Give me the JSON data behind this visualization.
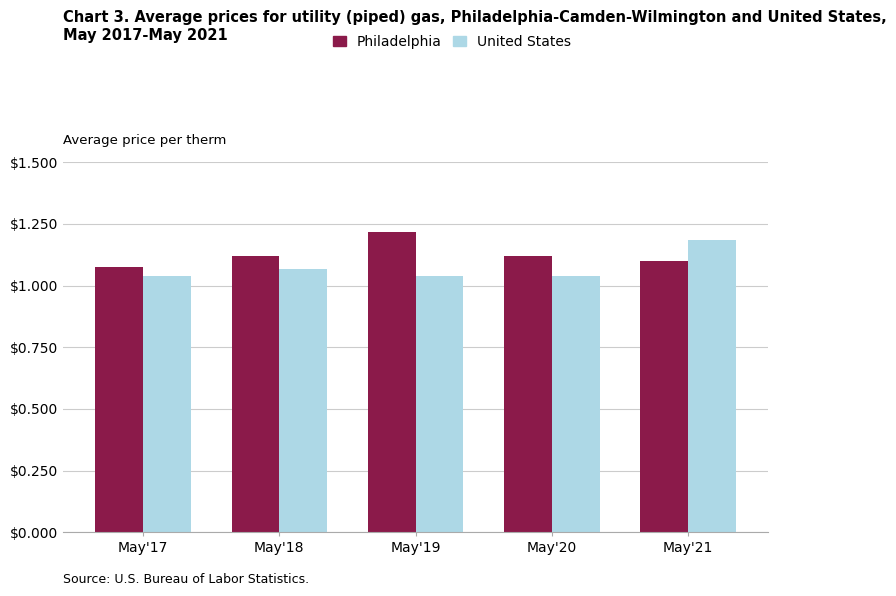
{
  "title_line1": "Chart 3. Average prices for utility (piped) gas, Philadelphia-Camden-Wilmington and United States,",
  "title_line2": "May 2017-May 2021",
  "ylabel": "Average price per therm",
  "source": "Source: U.S. Bureau of Labor Statistics.",
  "categories": [
    "May'17",
    "May'18",
    "May'19",
    "May'20",
    "May'21"
  ],
  "philadelphia_values": [
    1.075,
    1.12,
    1.215,
    1.12,
    1.1
  ],
  "us_values": [
    1.04,
    1.065,
    1.04,
    1.04,
    1.185
  ],
  "philadelphia_color": "#8B1A4A",
  "us_color": "#ADD8E6",
  "philadelphia_label": "Philadelphia",
  "us_label": "United States",
  "ylim": [
    0,
    1.5
  ],
  "yticks": [
    0.0,
    0.25,
    0.5,
    0.75,
    1.0,
    1.25,
    1.5
  ],
  "ytick_labels": [
    "$0.000",
    "$0.250",
    "$0.500",
    "$0.750",
    "$1.000",
    "$1.250",
    "$1.500"
  ],
  "bar_width": 0.35,
  "background_color": "#ffffff",
  "grid_color": "#cccccc",
  "title_fontsize": 10.5,
  "axis_label_fontsize": 9.5,
  "tick_fontsize": 10,
  "legend_fontsize": 10,
  "source_fontsize": 9
}
